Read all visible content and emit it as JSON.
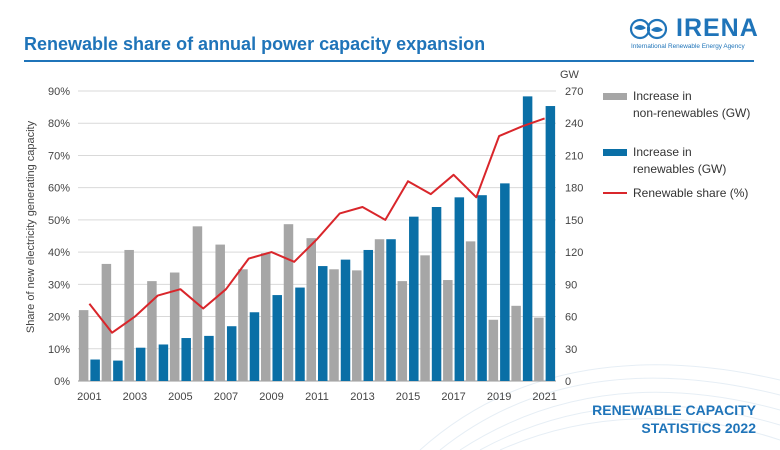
{
  "header": {
    "title": "Renewable share of annual power capacity expansion",
    "logo_text": "IRENA",
    "logo_subtext": "International Renewable Energy Agency"
  },
  "footer": {
    "brand_line1": "RENEWABLE CAPACITY",
    "brand_line2": "STATISTICS 2022"
  },
  "colors": {
    "title": "#1f74b9",
    "non_renewables_bar": "#a6a6a6",
    "renewables_bar": "#0a6fa6",
    "share_line": "#d9262b",
    "gridline": "#d9d9d9"
  },
  "chart_data": {
    "type": "bar",
    "categories": [
      "2001",
      "2002",
      "2003",
      "2004",
      "2005",
      "2006",
      "2007",
      "2008",
      "2009",
      "2010",
      "2011",
      "2012",
      "2013",
      "2014",
      "2015",
      "2016",
      "2017",
      "2018",
      "2019",
      "2020",
      "2021"
    ],
    "x_tick_labels": [
      "2001",
      "2003",
      "2005",
      "2007",
      "2009",
      "2011",
      "2013",
      "2015",
      "2017",
      "2019",
      "2021"
    ],
    "series": [
      {
        "name": "Increase in non-renewables (GW)",
        "kind": "bar",
        "axis": "right",
        "color": "#a6a6a6",
        "values": [
          66,
          109,
          122,
          93,
          101,
          144,
          127,
          104,
          119,
          146,
          133,
          104,
          103,
          132,
          93,
          117,
          94,
          130,
          57,
          70,
          59
        ]
      },
      {
        "name": "Increase in renewables (GW)",
        "kind": "bar",
        "axis": "right",
        "color": "#0a6fa6",
        "values": [
          20,
          19,
          31,
          34,
          40,
          42,
          51,
          64,
          80,
          87,
          107,
          113,
          122,
          132,
          153,
          162,
          171,
          173,
          184,
          265,
          256
        ]
      },
      {
        "name": "Renewable share (%)",
        "kind": "line",
        "axis": "left",
        "color": "#d9262b",
        "values": [
          24,
          15,
          20,
          26.5,
          28.5,
          22.5,
          28.5,
          38,
          40,
          37,
          44,
          52,
          54,
          50,
          62,
          58,
          64,
          57,
          76,
          79,
          81.5
        ]
      }
    ],
    "y_left": {
      "label": "Share of new electricity generating capacity",
      "min": 0,
      "max": 90,
      "step": 10,
      "tick_labels": [
        "0%",
        "10%",
        "20%",
        "30%",
        "40%",
        "50%",
        "60%",
        "70%",
        "80%",
        "90%"
      ]
    },
    "y_right": {
      "label": "GW",
      "min": 0,
      "max": 270,
      "step": 30,
      "tick_labels": [
        "0",
        "30",
        "60",
        "90",
        "120",
        "150",
        "180",
        "210",
        "240",
        "270"
      ]
    },
    "grid": true,
    "legend_position": "right"
  },
  "legend": {
    "items": [
      {
        "line1": "Increase in",
        "line2": "non-renewables (GW)"
      },
      {
        "line1": "Increase in",
        "line2": "renewables (GW)"
      },
      {
        "line1": "Renewable share (%)",
        "line2": ""
      }
    ]
  }
}
